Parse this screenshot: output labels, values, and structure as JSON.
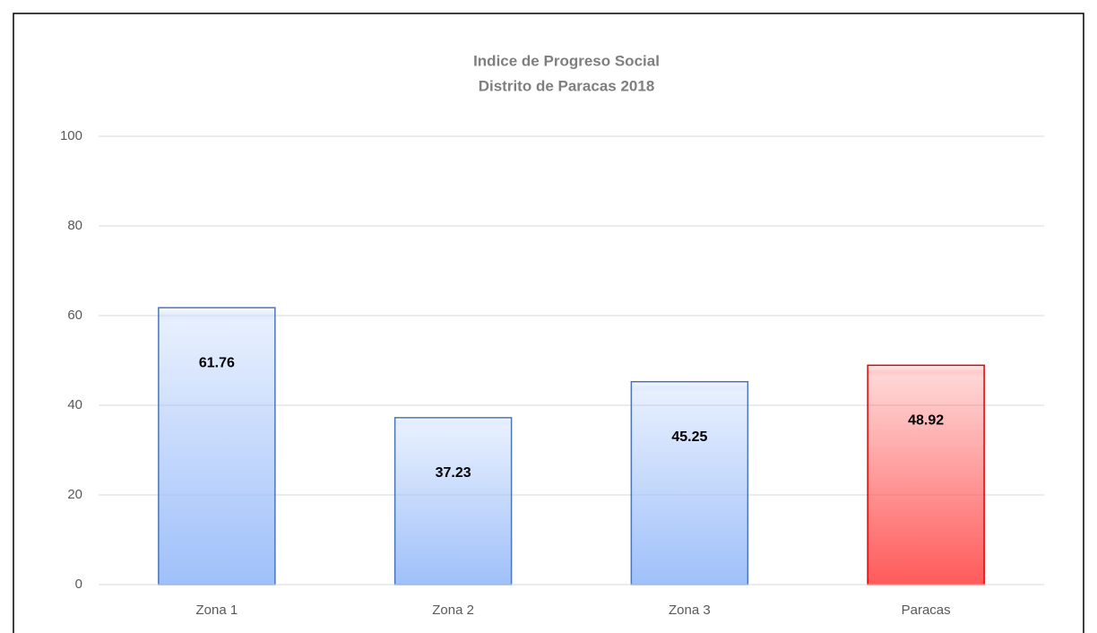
{
  "chart_data": {
    "type": "bar",
    "title": "Indice de Progreso Social",
    "subtitle": "Distrito de Paracas 2018",
    "categories": [
      "Zona 1",
      "Zona 2",
      "Zona 3",
      "Paracas"
    ],
    "values": [
      61.76,
      37.23,
      45.25,
      48.92
    ],
    "colors": [
      "#9fc0fa",
      "#9fc0fa",
      "#9fc0fa",
      "#ff5a5a"
    ],
    "edge_colors": [
      "#4a76b8",
      "#4a76b8",
      "#4a76b8",
      "#e00000"
    ],
    "ylim": [
      0,
      100
    ],
    "yticks": [
      0,
      20,
      40,
      60,
      80,
      100
    ],
    "grid": true
  }
}
